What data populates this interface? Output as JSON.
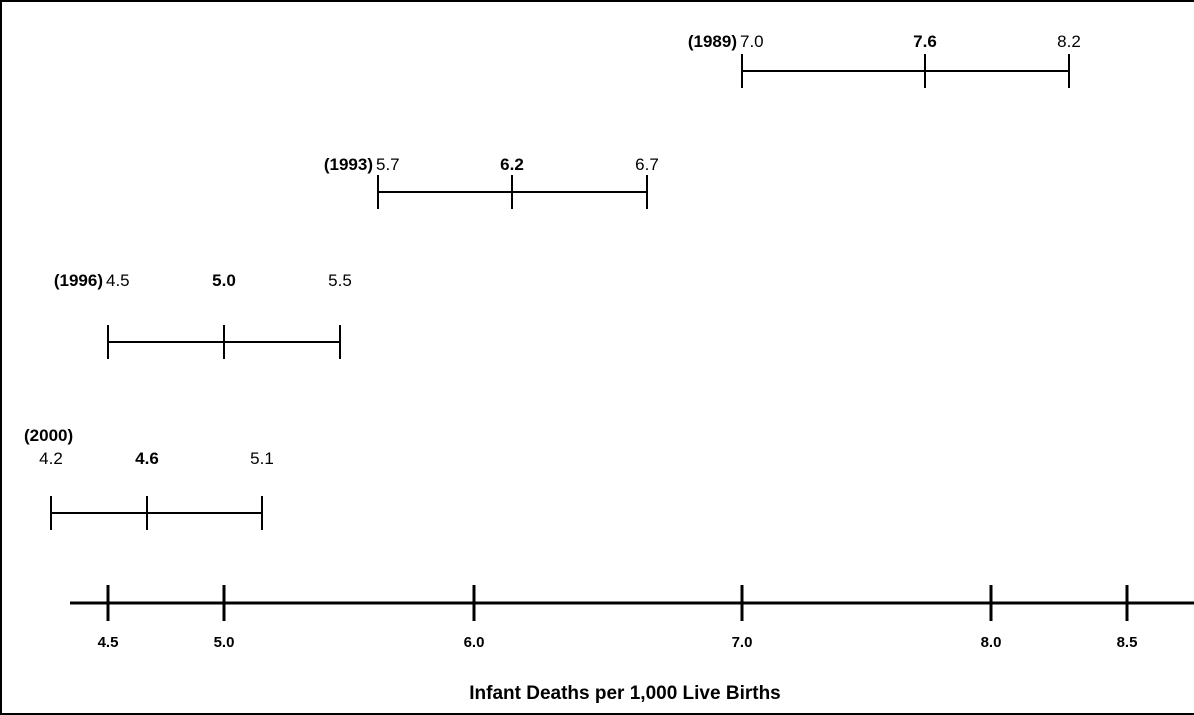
{
  "chart_data": {
    "type": "interval",
    "title": "",
    "xlabel": "Infant Deaths per 1,000 Live Births",
    "ylabel": "",
    "xlim": [
      4.5,
      8.5
    ],
    "x_ticks": [
      "4.5",
      "5.0",
      "6.0",
      "7.0",
      "8.0",
      "8.5"
    ],
    "grid": false,
    "series": [
      {
        "year": "(1989)",
        "low": 7.0,
        "mid": 7.6,
        "high": 8.2,
        "low_label": "7.0",
        "mid_label": "7.6",
        "high_label": "8.2"
      },
      {
        "year": "(1993)",
        "low": 5.7,
        "mid": 6.2,
        "high": 6.7,
        "low_label": "5.7",
        "mid_label": "6.2",
        "high_label": "6.7"
      },
      {
        "year": "(1996)",
        "low": 4.5,
        "mid": 5.0,
        "high": 5.5,
        "low_label": "4.5",
        "mid_label": "5.0",
        "high_label": "5.5"
      },
      {
        "year": "(2000)",
        "low": 4.2,
        "mid": 4.6,
        "high": 5.1,
        "low_label": "4.2",
        "mid_label": "4.6",
        "high_label": "5.1"
      }
    ],
    "colors": {
      "ink": "#000000",
      "background": "#ffffff"
    }
  }
}
